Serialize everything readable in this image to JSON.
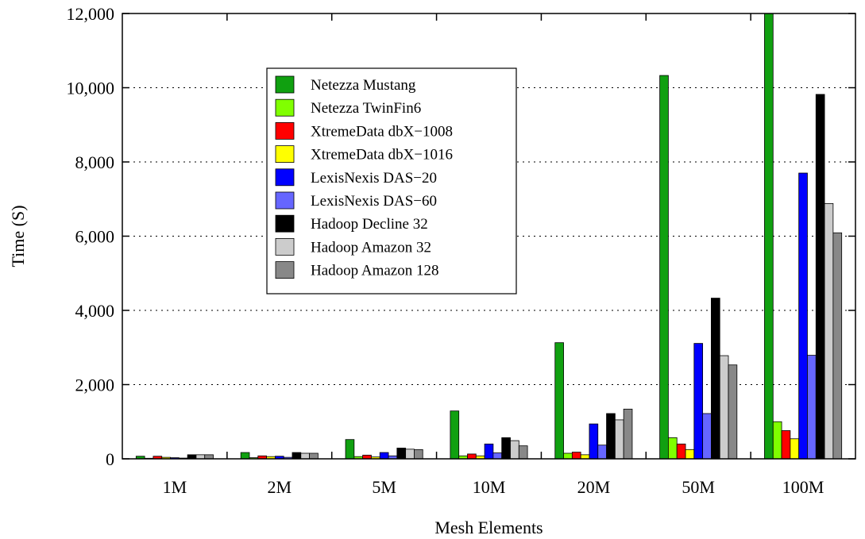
{
  "chart_data": {
    "type": "bar",
    "title": "",
    "xlabel": "Mesh Elements",
    "ylabel": "Time (S)",
    "ylim": [
      0,
      12000
    ],
    "yticks": [
      0,
      2000,
      4000,
      6000,
      8000,
      10000,
      12000
    ],
    "ytick_labels": [
      "0",
      "2,000",
      "4,000",
      "6,000",
      "8,000",
      "10,000",
      "12,000"
    ],
    "grid": "horizontal dotted",
    "legend_position": "top-left",
    "categories": [
      "1M",
      "2M",
      "5M",
      "10M",
      "20M",
      "50M",
      "100M"
    ],
    "series": [
      {
        "name": "Netezza Mustang",
        "color": "#10a010",
        "values": [
          70,
          170,
          520,
          1290,
          3130,
          10330,
          12000
        ]
      },
      {
        "name": "Netezza TwinFin6",
        "color": "#80ff00",
        "values": [
          15,
          30,
          60,
          80,
          150,
          570,
          1000
        ]
      },
      {
        "name": "XtremeData dbX−1008",
        "color": "#ff0000",
        "values": [
          70,
          80,
          100,
          130,
          180,
          400,
          760
        ]
      },
      {
        "name": "XtremeData dbX−1016",
        "color": "#ffff00",
        "values": [
          40,
          60,
          50,
          80,
          110,
          250,
          540
        ]
      },
      {
        "name": "LexisNexis DAS−20",
        "color": "#0000ff",
        "values": [
          30,
          70,
          170,
          400,
          940,
          3110,
          7700
        ]
      },
      {
        "name": "LexisNexis DAS−60",
        "color": "#6666ff",
        "values": [
          20,
          40,
          80,
          160,
          370,
          1220,
          2790
        ]
      },
      {
        "name": "Hadoop Decline 32",
        "color": "#000000",
        "values": [
          110,
          170,
          290,
          570,
          1220,
          4330,
          9820
        ]
      },
      {
        "name": "Hadoop Amazon 32",
        "color": "#cccccc",
        "values": [
          110,
          150,
          260,
          490,
          1050,
          2780,
          6880
        ]
      },
      {
        "name": "Hadoop Amazon 128",
        "color": "#888888",
        "values": [
          110,
          150,
          250,
          350,
          1340,
          2530,
          6090
        ]
      }
    ]
  }
}
